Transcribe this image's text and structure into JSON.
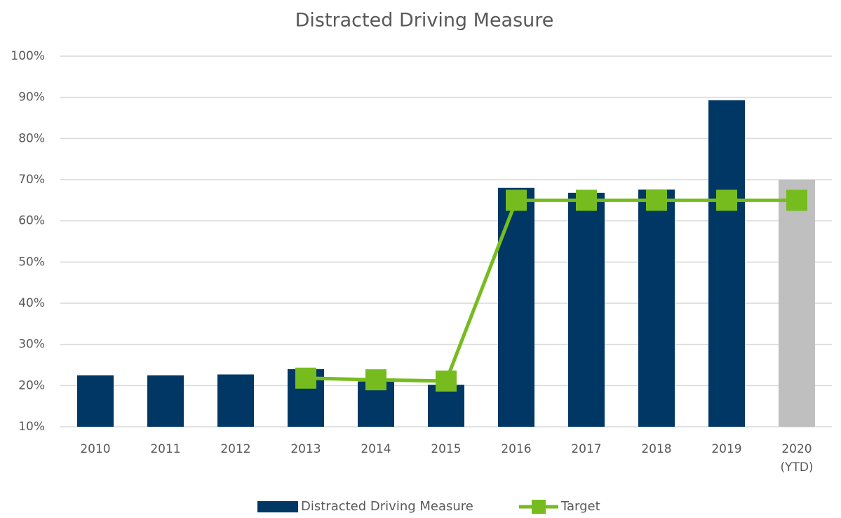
{
  "chart_data": {
    "type": "bar_line",
    "title": "Distracted Driving Measure",
    "categories": [
      "2010",
      "2011",
      "2012",
      "2013",
      "2014",
      "2015",
      "2016",
      "2017",
      "2018",
      "2019",
      "2020 (YTD)"
    ],
    "series": [
      {
        "name": "Distracted Driving Measure",
        "type": "bar",
        "color": "#003764",
        "colors": [
          "#003764",
          "#003764",
          "#003764",
          "#003764",
          "#003764",
          "#003764",
          "#003764",
          "#003764",
          "#003764",
          "#003764",
          "#bfbfbf"
        ],
        "values": [
          22.5,
          22.5,
          22.7,
          24,
          21,
          20.2,
          68,
          66.8,
          67.6,
          89.3,
          70
        ]
      },
      {
        "name": "Target",
        "type": "line",
        "color": "#77bc1f",
        "values": [
          null,
          null,
          null,
          21.8,
          21.4,
          21.1,
          65,
          65,
          65,
          65,
          65
        ]
      }
    ],
    "ylim": [
      10,
      100
    ],
    "yticks": [
      {
        "value": 10,
        "label": "10%"
      },
      {
        "value": 20,
        "label": "20%"
      },
      {
        "value": 30,
        "label": "30%"
      },
      {
        "value": 40,
        "label": "40%"
      },
      {
        "value": 50,
        "label": "50%"
      },
      {
        "value": 60,
        "label": "60%"
      },
      {
        "value": 70,
        "label": "70%"
      },
      {
        "value": 80,
        "label": "80%"
      },
      {
        "value": 90,
        "label": "90%"
      },
      {
        "value": 100,
        "label": "100%"
      }
    ],
    "grid": true,
    "legend": "bottom"
  }
}
